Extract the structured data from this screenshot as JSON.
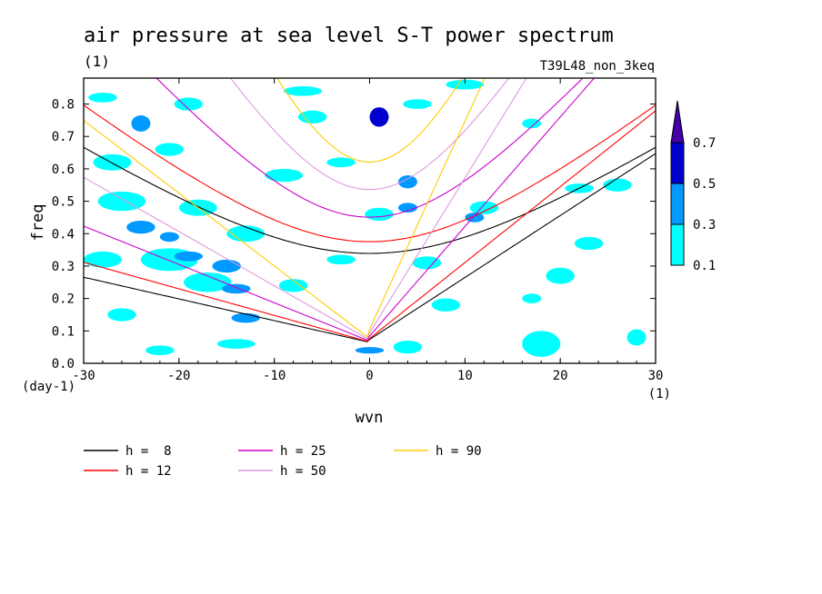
{
  "chart_data": {
    "type": "heatmap",
    "title": "air pressure at sea level S-T power spectrum",
    "subtitle_left": "(1)",
    "subtitle_right": "T39L48_non_3keq",
    "xlabel": "wvn",
    "ylabel": "freq",
    "x_unit": "(1)",
    "y_unit": "(day-1)",
    "xlim": [
      -30,
      30
    ],
    "ylim": [
      0,
      0.88
    ],
    "xticks": [
      -30,
      -20,
      -10,
      0,
      10,
      20,
      30
    ],
    "xtick_labels": [
      "-30",
      "-20",
      "-10",
      "0",
      "10",
      "20",
      "30"
    ],
    "yticks": [
      0,
      0.1,
      0.2,
      0.3,
      0.4,
      0.5,
      0.6,
      0.7,
      0.8
    ],
    "ytick_labels": [
      "0.0",
      "0.1",
      "0.2",
      "0.3",
      "0.4",
      "0.5",
      "0.6",
      "0.7",
      "0.8"
    ],
    "colorbar": {
      "levels": [
        0.1,
        0.3,
        0.5,
        0.7
      ],
      "labels": [
        "0.1",
        "0.3",
        "0.5",
        "0.7"
      ],
      "colors": [
        "#00ffff",
        "#0099ff",
        "#0000cc",
        "#4400aa"
      ],
      "extend": "max"
    },
    "shaded_regions": [
      {
        "x": -28,
        "y": 0.82,
        "w": 3,
        "h": 0.03,
        "level": 0.1
      },
      {
        "x": -24,
        "y": 0.74,
        "w": 2,
        "h": 0.05,
        "level": 0.3
      },
      {
        "x": -19,
        "y": 0.8,
        "w": 3,
        "h": 0.04,
        "level": 0.1
      },
      {
        "x": -7,
        "y": 0.84,
        "w": 4,
        "h": 0.03,
        "level": 0.1
      },
      {
        "x": -6,
        "y": 0.76,
        "w": 3,
        "h": 0.04,
        "level": 0.1
      },
      {
        "x": 1,
        "y": 0.76,
        "w": 2,
        "h": 0.06,
        "level": 0.5
      },
      {
        "x": 5,
        "y": 0.8,
        "w": 3,
        "h": 0.03,
        "level": 0.1
      },
      {
        "x": 10,
        "y": 0.86,
        "w": 4,
        "h": 0.03,
        "level": 0.1
      },
      {
        "x": 17,
        "y": 0.74,
        "w": 2,
        "h": 0.03,
        "level": 0.1
      },
      {
        "x": -27,
        "y": 0.62,
        "w": 4,
        "h": 0.05,
        "level": 0.1
      },
      {
        "x": -21,
        "y": 0.66,
        "w": 3,
        "h": 0.04,
        "level": 0.1
      },
      {
        "x": -26,
        "y": 0.5,
        "w": 5,
        "h": 0.06,
        "level": 0.1
      },
      {
        "x": -18,
        "y": 0.48,
        "w": 4,
        "h": 0.05,
        "level": 0.1
      },
      {
        "x": -24,
        "y": 0.42,
        "w": 3,
        "h": 0.04,
        "level": 0.3
      },
      {
        "x": -13,
        "y": 0.4,
        "w": 4,
        "h": 0.05,
        "level": 0.1
      },
      {
        "x": -21,
        "y": 0.39,
        "w": 2,
        "h": 0.03,
        "level": 0.3
      },
      {
        "x": -28,
        "y": 0.32,
        "w": 4,
        "h": 0.05,
        "level": 0.1
      },
      {
        "x": -21,
        "y": 0.32,
        "w": 6,
        "h": 0.07,
        "level": 0.1
      },
      {
        "x": -19,
        "y": 0.33,
        "w": 3,
        "h": 0.03,
        "level": 0.3
      },
      {
        "x": -15,
        "y": 0.3,
        "w": 3,
        "h": 0.04,
        "level": 0.3
      },
      {
        "x": -17,
        "y": 0.25,
        "w": 5,
        "h": 0.06,
        "level": 0.1
      },
      {
        "x": -14,
        "y": 0.23,
        "w": 3,
        "h": 0.03,
        "level": 0.3
      },
      {
        "x": -26,
        "y": 0.15,
        "w": 3,
        "h": 0.04,
        "level": 0.1
      },
      {
        "x": -13,
        "y": 0.14,
        "w": 3,
        "h": 0.03,
        "level": 0.3
      },
      {
        "x": -8,
        "y": 0.24,
        "w": 3,
        "h": 0.04,
        "level": 0.1
      },
      {
        "x": -9,
        "y": 0.58,
        "w": 4,
        "h": 0.04,
        "level": 0.1
      },
      {
        "x": -3,
        "y": 0.62,
        "w": 3,
        "h": 0.03,
        "level": 0.1
      },
      {
        "x": 4,
        "y": 0.56,
        "w": 2,
        "h": 0.04,
        "level": 0.3
      },
      {
        "x": 1,
        "y": 0.46,
        "w": 3,
        "h": 0.04,
        "level": 0.1
      },
      {
        "x": 4,
        "y": 0.48,
        "w": 2,
        "h": 0.03,
        "level": 0.3
      },
      {
        "x": 12,
        "y": 0.48,
        "w": 3,
        "h": 0.04,
        "level": 0.1
      },
      {
        "x": 11,
        "y": 0.45,
        "w": 2,
        "h": 0.03,
        "level": 0.3
      },
      {
        "x": 6,
        "y": 0.31,
        "w": 3,
        "h": 0.04,
        "level": 0.1
      },
      {
        "x": -3,
        "y": 0.32,
        "w": 3,
        "h": 0.03,
        "level": 0.1
      },
      {
        "x": 8,
        "y": 0.18,
        "w": 3,
        "h": 0.04,
        "level": 0.1
      },
      {
        "x": 4,
        "y": 0.05,
        "w": 3,
        "h": 0.04,
        "level": 0.1
      },
      {
        "x": 0,
        "y": 0.04,
        "w": 3,
        "h": 0.02,
        "level": 0.3
      },
      {
        "x": -14,
        "y": 0.06,
        "w": 4,
        "h": 0.03,
        "level": 0.1
      },
      {
        "x": -22,
        "y": 0.04,
        "w": 3,
        "h": 0.03,
        "level": 0.1
      },
      {
        "x": 18,
        "y": 0.06,
        "w": 4,
        "h": 0.08,
        "level": 0.1
      },
      {
        "x": 20,
        "y": 0.27,
        "w": 3,
        "h": 0.05,
        "level": 0.1
      },
      {
        "x": 23,
        "y": 0.37,
        "w": 3,
        "h": 0.04,
        "level": 0.1
      },
      {
        "x": 26,
        "y": 0.55,
        "w": 3,
        "h": 0.04,
        "level": 0.1
      },
      {
        "x": 22,
        "y": 0.54,
        "w": 3,
        "h": 0.03,
        "level": 0.1
      },
      {
        "x": 28,
        "y": 0.08,
        "w": 2,
        "h": 0.05,
        "level": 0.1
      },
      {
        "x": 17,
        "y": 0.2,
        "w": 2,
        "h": 0.03,
        "level": 0.1
      }
    ],
    "series": [
      {
        "name": "h =  8",
        "color": "#000000",
        "h": 8
      },
      {
        "name": "h = 12",
        "color": "#ff0000",
        "h": 12
      },
      {
        "name": "h = 25",
        "color": "#cc00cc",
        "h": 25
      },
      {
        "name": "h = 50",
        "color": "#dd99dd",
        "h": 50
      },
      {
        "name": "h = 90",
        "color": "#ffcc00",
        "h": 90
      }
    ],
    "legend_position": "bottom"
  }
}
